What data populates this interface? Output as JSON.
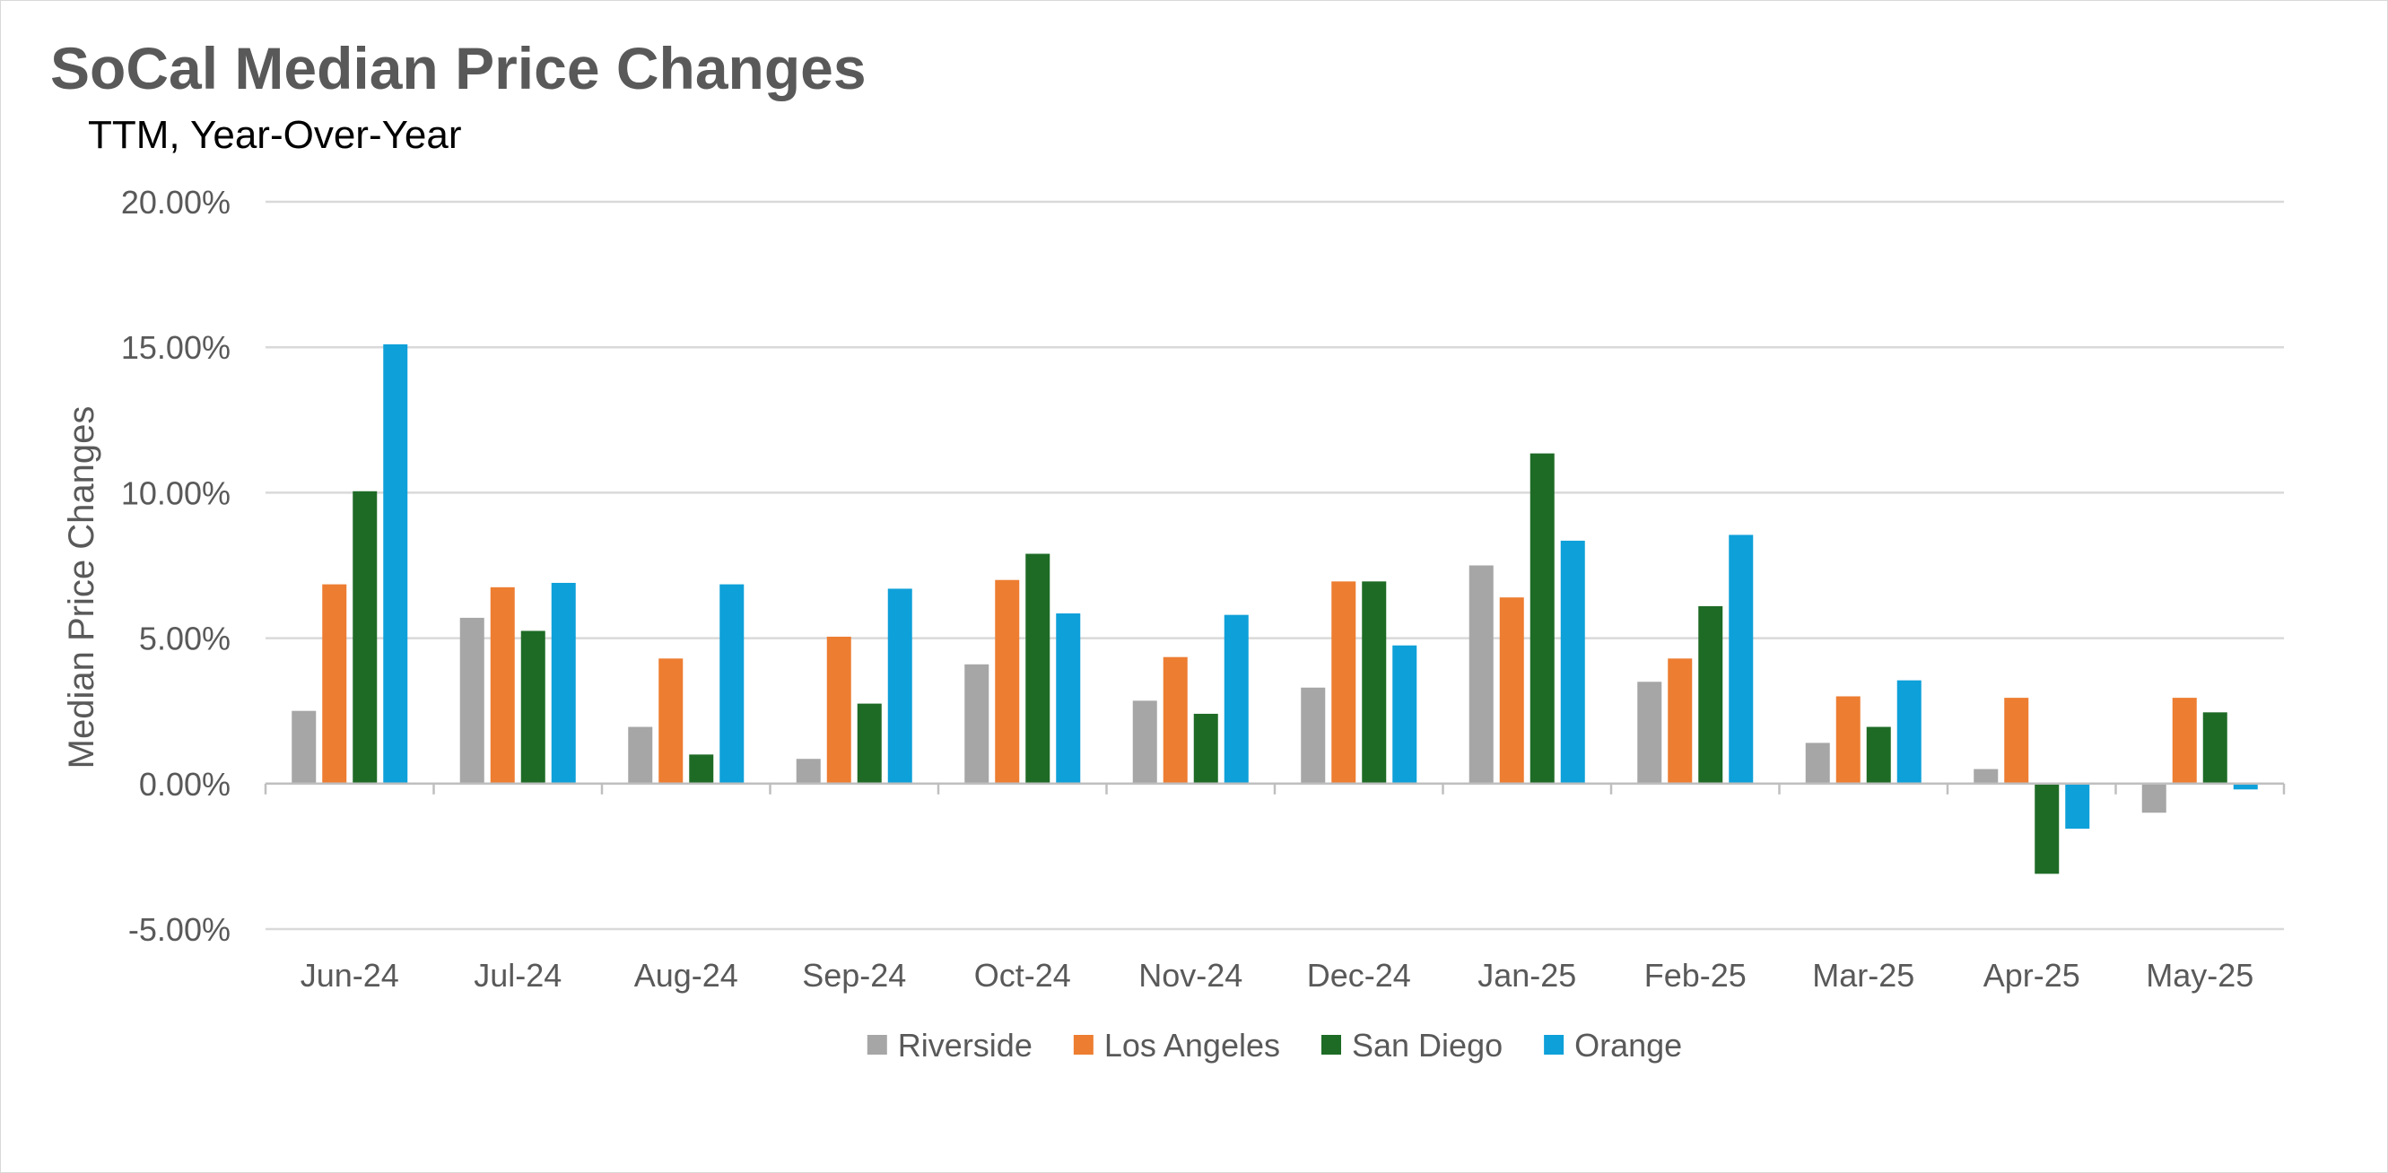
{
  "chart_data": {
    "type": "bar",
    "title": "SoCal Median Price Changes",
    "subtitle": "TTM, Year-Over-Year",
    "xlabel": "",
    "ylabel": "Median Price Changes",
    "ylim": [
      -5,
      20
    ],
    "ytick_values": [
      -5,
      0,
      5,
      10,
      15,
      20
    ],
    "ytick_labels": [
      "-5.00%",
      "0.00%",
      "5.00%",
      "10.00%",
      "15.00%",
      "20.00%"
    ],
    "grid": true,
    "legend_position": "bottom",
    "categories": [
      "Jun-24",
      "Jul-24",
      "Aug-24",
      "Sep-24",
      "Oct-24",
      "Nov-24",
      "Dec-24",
      "Jan-25",
      "Feb-25",
      "Mar-25",
      "Apr-25",
      "May-25"
    ],
    "series": [
      {
        "name": "Riverside",
        "color": "#a6a6a6",
        "values": [
          2.5,
          5.7,
          1.95,
          0.85,
          4.1,
          2.85,
          3.3,
          7.5,
          3.5,
          1.4,
          0.5,
          -1.0
        ]
      },
      {
        "name": "Los Angeles",
        "color": "#ed7d31",
        "values": [
          6.85,
          6.75,
          4.3,
          5.05,
          7.0,
          4.35,
          6.95,
          6.4,
          4.3,
          3.0,
          2.95,
          2.95
        ]
      },
      {
        "name": "San Diego",
        "color": "#1e6b26",
        "values": [
          10.05,
          5.25,
          1.0,
          2.75,
          7.9,
          2.4,
          6.95,
          11.35,
          6.1,
          1.95,
          -3.1,
          2.45
        ]
      },
      {
        "name": "Orange",
        "color": "#0ea0d9",
        "values": [
          15.1,
          6.9,
          6.85,
          6.7,
          5.85,
          5.8,
          4.75,
          8.35,
          8.55,
          3.55,
          -1.55,
          -0.2
        ]
      }
    ]
  }
}
